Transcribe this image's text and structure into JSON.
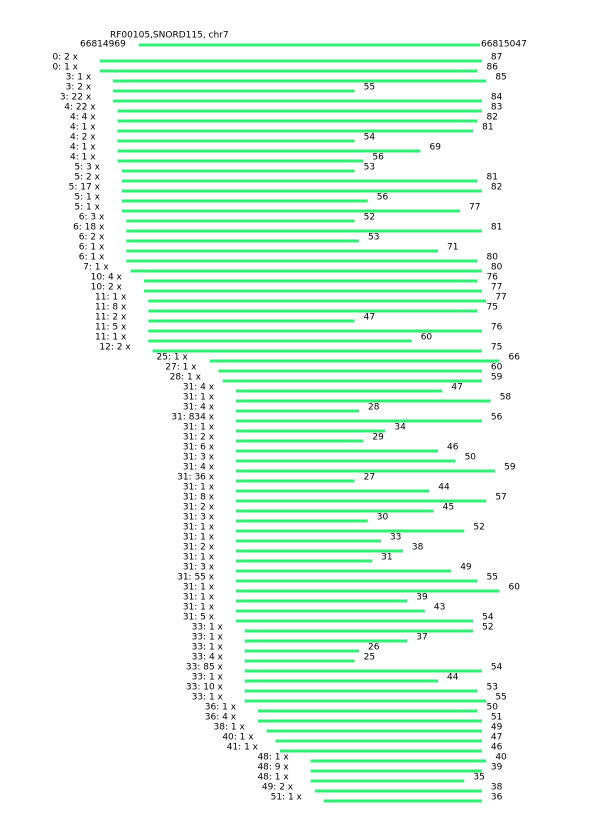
{
  "header": {
    "title": "RF00105,SNORD115, chr7",
    "start": "66814969",
    "end": "66815047"
  },
  "reads": [
    {
      "label": "0: 2 x",
      "length": 87
    },
    {
      "label": "0: 1 x",
      "length": 86
    },
    {
      "label": "3: 1 x",
      "length": 85
    },
    {
      "label": "3: 2 x",
      "length": 55
    },
    {
      "label": "3: 22 x",
      "length": 84
    },
    {
      "label": "4: 22 x",
      "length": 83
    },
    {
      "label": "4: 4 x",
      "length": 82
    },
    {
      "label": "4: 1 x",
      "length": 81
    },
    {
      "label": "4: 2 x",
      "length": 54
    },
    {
      "label": "4: 1 x",
      "length": 69
    },
    {
      "label": "4: 1 x",
      "length": 56
    },
    {
      "label": "5: 3 x",
      "length": 53
    },
    {
      "label": "5: 2 x",
      "length": 81
    },
    {
      "label": "5: 17 x",
      "length": 82
    },
    {
      "label": "5: 1 x",
      "length": 56
    },
    {
      "label": "5: 1 x",
      "length": 77
    },
    {
      "label": "6: 3 x",
      "length": 52
    },
    {
      "label": "6: 18 x",
      "length": 81
    },
    {
      "label": "6: 2 x",
      "length": 53
    },
    {
      "label": "6: 1 x",
      "length": 71
    },
    {
      "label": "6: 1 x",
      "length": 80
    },
    {
      "label": "7: 1 x",
      "length": 80
    },
    {
      "label": "10: 4 x",
      "length": 76
    },
    {
      "label": "10: 2 x",
      "length": 77
    },
    {
      "label": "11: 1 x",
      "length": 77
    },
    {
      "label": "11: 8 x",
      "length": 75
    },
    {
      "label": "11: 2 x",
      "length": 47
    },
    {
      "label": "11: 5 x",
      "length": 76
    },
    {
      "label": "11: 1 x",
      "length": 60
    },
    {
      "label": "12: 2 x",
      "length": 75
    },
    {
      "label": "25: 1 x",
      "length": 66
    },
    {
      "label": "27: 1 x",
      "length": 60
    },
    {
      "label": "28: 1 x",
      "length": 59
    },
    {
      "label": "31: 4 x",
      "length": 47
    },
    {
      "label": "31: 1 x",
      "length": 58
    },
    {
      "label": "31: 4 x",
      "length": 28
    },
    {
      "label": "31: 834 x",
      "length": 56
    },
    {
      "label": "31: 1 x",
      "length": 34
    },
    {
      "label": "31: 2 x",
      "length": 29
    },
    {
      "label": "31: 6 x",
      "length": 46
    },
    {
      "label": "31: 3 x",
      "length": 50
    },
    {
      "label": "31: 4 x",
      "length": 59
    },
    {
      "label": "31: 36 x",
      "length": 27
    },
    {
      "label": "31: 1 x",
      "length": 44
    },
    {
      "label": "31: 8 x",
      "length": 57
    },
    {
      "label": "31: 2 x",
      "length": 45
    },
    {
      "label": "31: 3 x",
      "length": 30
    },
    {
      "label": "31: 1 x",
      "length": 52
    },
    {
      "label": "31: 1 x",
      "length": 33
    },
    {
      "label": "31: 2 x",
      "length": 38
    },
    {
      "label": "31: 1 x",
      "length": 31
    },
    {
      "label": "31: 3 x",
      "length": 49
    },
    {
      "label": "31: 55 x",
      "length": 55
    },
    {
      "label": "31: 1 x",
      "length": 60
    },
    {
      "label": "31: 1 x",
      "length": 39
    },
    {
      "label": "31: 1 x",
      "length": 43
    },
    {
      "label": "31: 5 x",
      "length": 54
    },
    {
      "label": "33: 1 x",
      "length": 52
    },
    {
      "label": "33: 1 x",
      "length": 37
    },
    {
      "label": "33: 1 x",
      "length": 26
    },
    {
      "label": "33: 4 x",
      "length": 25
    },
    {
      "label": "33: 85 x",
      "length": 54
    },
    {
      "label": "33: 1 x",
      "length": 44
    },
    {
      "label": "33: 10 x",
      "length": 53
    },
    {
      "label": "33: 1 x",
      "length": 55
    },
    {
      "label": "36: 1 x",
      "length": 50
    },
    {
      "label": "36: 4 x",
      "length": 51
    },
    {
      "label": "38: 1 x",
      "length": 49
    },
    {
      "label": "40: 1 x",
      "length": 47
    },
    {
      "label": "41: 1 x",
      "length": 46
    },
    {
      "label": "48: 1 x",
      "length": 40
    },
    {
      "label": "48: 9 x",
      "length": 39
    },
    {
      "label": "48: 1 x",
      "length": 35
    },
    {
      "label": "49: 2 x",
      "length": 38
    },
    {
      "label": "51: 1 x",
      "length": 36
    }
  ]
}
